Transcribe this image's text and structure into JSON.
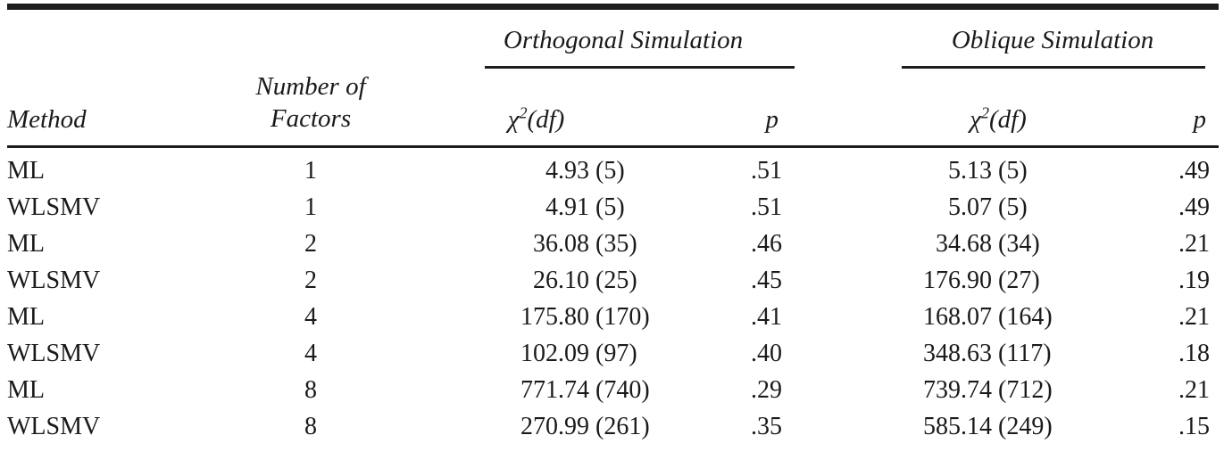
{
  "colors": {
    "text": "#1a1a19",
    "rule": "#1d1d1b",
    "background": "#ffffff"
  },
  "table": {
    "headers": {
      "method": "Method",
      "factors_line1": "Number of",
      "factors_line2": "Factors",
      "orthogonal_spanner": "Orthogonal Simulation",
      "oblique_spanner": "Oblique Simulation",
      "chi_base": "χ",
      "chi_sup": "2",
      "chi_rest": "(df)",
      "p": "p"
    },
    "rows": [
      {
        "method": "ML",
        "factors": "1",
        "orth_chi": "4.93",
        "orth_df": "(5)",
        "orth_p": ".51",
        "obl_chi": "5.13",
        "obl_df": "(5)",
        "obl_p": ".49"
      },
      {
        "method": "WLSMV",
        "factors": "1",
        "orth_chi": "4.91",
        "orth_df": "(5)",
        "orth_p": ".51",
        "obl_chi": "5.07",
        "obl_df": "(5)",
        "obl_p": ".49"
      },
      {
        "method": "ML",
        "factors": "2",
        "orth_chi": "36.08",
        "orth_df": "(35)",
        "orth_p": ".46",
        "obl_chi": "34.68",
        "obl_df": "(34)",
        "obl_p": ".21"
      },
      {
        "method": "WLSMV",
        "factors": "2",
        "orth_chi": "26.10",
        "orth_df": "(25)",
        "orth_p": ".45",
        "obl_chi": "176.90",
        "obl_df": "(27)",
        "obl_p": ".19"
      },
      {
        "method": "ML",
        "factors": "4",
        "orth_chi": "175.80",
        "orth_df": "(170)",
        "orth_p": ".41",
        "obl_chi": "168.07",
        "obl_df": "(164)",
        "obl_p": ".21"
      },
      {
        "method": "WLSMV",
        "factors": "4",
        "orth_chi": "102.09",
        "orth_df": "(97)",
        "orth_p": ".40",
        "obl_chi": "348.63",
        "obl_df": "(117)",
        "obl_p": ".18"
      },
      {
        "method": "ML",
        "factors": "8",
        "orth_chi": "771.74",
        "orth_df": "(740)",
        "orth_p": ".29",
        "obl_chi": "739.74",
        "obl_df": "(712)",
        "obl_p": ".21"
      },
      {
        "method": "WLSMV",
        "factors": "8",
        "orth_chi": "270.99",
        "orth_df": "(261)",
        "orth_p": ".35",
        "obl_chi": "585.14",
        "obl_df": "(249)",
        "obl_p": ".15"
      }
    ]
  }
}
